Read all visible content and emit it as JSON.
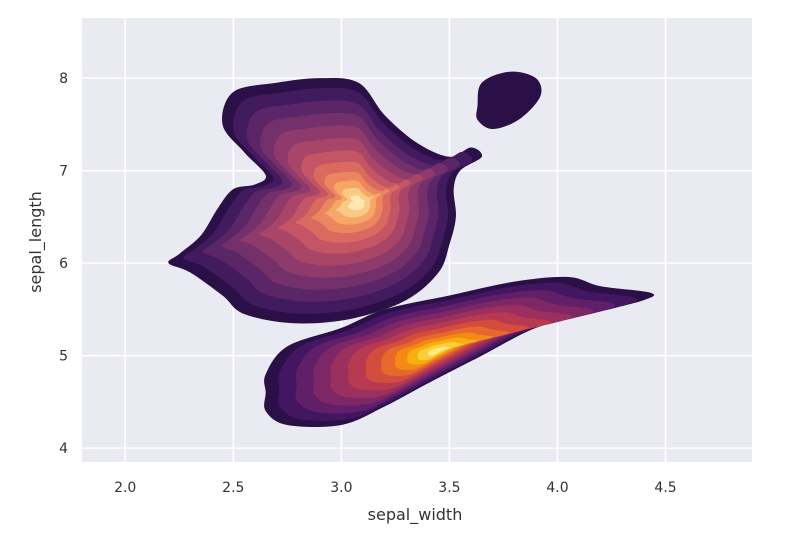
{
  "chart_data": {
    "type": "kde-contour",
    "xlabel": "sepal_width",
    "ylabel": "sepal_length",
    "xlim": [
      1.8,
      4.9
    ],
    "ylim": [
      3.85,
      8.65
    ],
    "xticks": [
      "2.0",
      "2.5",
      "3.0",
      "3.5",
      "4.0",
      "4.5"
    ],
    "yticks": [
      "4",
      "5",
      "6",
      "7",
      "8"
    ],
    "grid": true,
    "colormap": "inferno",
    "colors": {
      "background": "#EAEAF2",
      "grid": "#FFFFFF",
      "levels": [
        "#2B0F47",
        "#421A5E",
        "#5A2668",
        "#74306B",
        "#8E3A6A",
        "#A94667",
        "#C35565",
        "#DA6A60",
        "#EC865E",
        "#F6A768",
        "#FBC986",
        "#FDE8AE"
      ],
      "levels_b": [
        "#2B0F47",
        "#431661",
        "#601F68",
        "#7E2766",
        "#9B2F5E",
        "#B83A50",
        "#D24D3E",
        "#E6682A",
        "#F38A16",
        "#F9AE10",
        "#FACF3A",
        "#FBEB84"
      ]
    },
    "groups": [
      {
        "peak": [
          3.08,
          6.65
        ],
        "outer_boundary": [
          [
            2.2,
            6.0
          ],
          [
            2.25,
            6.1
          ],
          [
            2.35,
            6.3
          ],
          [
            2.43,
            6.6
          ],
          [
            2.5,
            6.8
          ],
          [
            2.6,
            6.85
          ],
          [
            2.65,
            6.95
          ],
          [
            2.55,
            7.2
          ],
          [
            2.45,
            7.5
          ],
          [
            2.5,
            7.85
          ],
          [
            2.7,
            7.95
          ],
          [
            2.9,
            8.0
          ],
          [
            3.08,
            7.95
          ],
          [
            3.2,
            7.6
          ],
          [
            3.35,
            7.3
          ],
          [
            3.5,
            7.15
          ],
          [
            3.6,
            7.25
          ],
          [
            3.65,
            7.15
          ],
          [
            3.55,
            7.0
          ],
          [
            3.52,
            6.8
          ],
          [
            3.53,
            6.5
          ],
          [
            3.5,
            6.2
          ],
          [
            3.45,
            5.9
          ],
          [
            3.3,
            5.6
          ],
          [
            3.05,
            5.4
          ],
          [
            2.78,
            5.35
          ],
          [
            2.55,
            5.45
          ],
          [
            2.45,
            5.65
          ],
          [
            2.3,
            5.9
          ]
        ],
        "levels": [
          0.92,
          0.82,
          0.72,
          0.62,
          0.52,
          0.42,
          0.33,
          0.25,
          0.18,
          0.12,
          0.06
        ]
      },
      {
        "peak": [
          3.8,
          7.8
        ],
        "outer_boundary": [
          [
            3.63,
            7.7
          ],
          [
            3.65,
            7.95
          ],
          [
            3.78,
            8.07
          ],
          [
            3.9,
            8.0
          ],
          [
            3.92,
            7.8
          ],
          [
            3.82,
            7.55
          ],
          [
            3.7,
            7.45
          ],
          [
            3.63,
            7.55
          ]
        ],
        "levels": []
      },
      {
        "peak": [
          3.45,
          5.05
        ],
        "outer_boundary": [
          [
            2.65,
            4.6
          ],
          [
            2.65,
            4.8
          ],
          [
            2.75,
            5.1
          ],
          [
            3.0,
            5.3
          ],
          [
            3.2,
            5.5
          ],
          [
            3.5,
            5.65
          ],
          [
            3.8,
            5.8
          ],
          [
            4.05,
            5.85
          ],
          [
            4.2,
            5.75
          ],
          [
            4.43,
            5.68
          ],
          [
            4.4,
            5.6
          ],
          [
            4.15,
            5.45
          ],
          [
            3.9,
            5.3
          ],
          [
            3.65,
            5.0
          ],
          [
            3.4,
            4.7
          ],
          [
            3.2,
            4.45
          ],
          [
            3.0,
            4.25
          ],
          [
            2.75,
            4.25
          ],
          [
            2.65,
            4.4
          ]
        ],
        "levels": [
          0.92,
          0.82,
          0.72,
          0.62,
          0.52,
          0.42,
          0.33,
          0.25,
          0.18,
          0.12,
          0.06
        ]
      }
    ]
  }
}
